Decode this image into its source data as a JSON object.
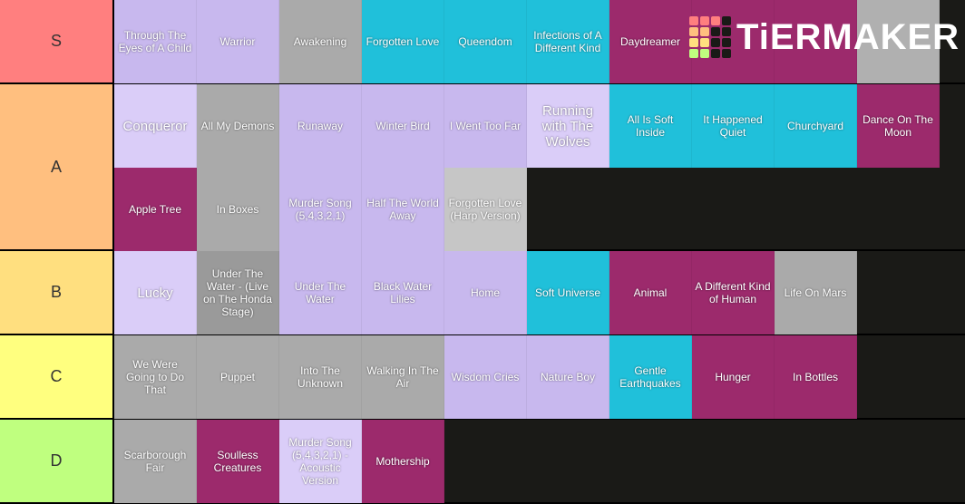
{
  "logo": "TiERMAKER",
  "tiers": [
    {
      "label": "S",
      "color": "#ff7f7f",
      "tiles": [
        {
          "label": "Through The Eyes of A Child",
          "color": "#c8b8ee"
        },
        {
          "label": "Warrior",
          "color": "#c8b8ee"
        },
        {
          "label": "Awakening",
          "color": "#aaaaaa"
        },
        {
          "label": "Forgotten Love",
          "color": "#20c0da"
        },
        {
          "label": "Queendom",
          "color": "#20c0da"
        },
        {
          "label": "Infections of A Different Kind",
          "color": "#20c0da"
        },
        {
          "label": "Daydreamer",
          "color": "#9c2a6c"
        },
        {
          "color": "#9c2a6c"
        },
        {
          "color": "#9c2a6c"
        },
        {
          "color": "#b0b0b0"
        }
      ]
    },
    {
      "label": "A",
      "color": "#ffbf7f",
      "tiles": [
        {
          "label": "Conqueror",
          "color": "#dacdf8",
          "big": true
        },
        {
          "label": "All My Demons",
          "color": "#aaaaaa"
        },
        {
          "label": "Runaway",
          "color": "#c8b8ee"
        },
        {
          "label": "Winter Bird",
          "color": "#c8b8ee"
        },
        {
          "label": "I Went Too Far",
          "color": "#c8b8ee"
        },
        {
          "label": "Running with The Wolves",
          "color": "#dacdf8",
          "big": true
        },
        {
          "label": "All Is Soft Inside",
          "color": "#20c0da"
        },
        {
          "label": "It Happened Quiet",
          "color": "#20c0da"
        },
        {
          "label": "Churchyard",
          "color": "#20c0da"
        },
        {
          "label": "Dance On The Moon",
          "color": "#9c2a6c"
        },
        {
          "label": "Apple Tree",
          "color": "#9c2a6c"
        },
        {
          "label": "In Boxes",
          "color": "#aaaaaa"
        },
        {
          "label": "Murder Song (5,4,3,2,1)",
          "color": "#c8b8ee"
        },
        {
          "label": "Half The World Away",
          "color": "#c8b8ee"
        },
        {
          "label": "Forgotten Love (Harp Version)",
          "color": "#c6c6c6"
        }
      ]
    },
    {
      "label": "B",
      "color": "#ffdf7f",
      "tiles": [
        {
          "label": "Lucky",
          "color": "#dacdf8",
          "big": true
        },
        {
          "label": "Under The Water - (Live on The Honda Stage)",
          "color": "#9a9a9a"
        },
        {
          "label": "Under The Water",
          "color": "#c8b8ee"
        },
        {
          "label": "Black Water Lilies",
          "color": "#c8b8ee"
        },
        {
          "label": "Home",
          "color": "#c8b8ee"
        },
        {
          "label": "Soft Universe",
          "color": "#20c0da"
        },
        {
          "label": "Animal",
          "color": "#9c2a6c"
        },
        {
          "label": "A Different Kind of Human",
          "color": "#9c2a6c"
        },
        {
          "label": "Life On Mars",
          "color": "#aaaaaa"
        }
      ]
    },
    {
      "label": "C",
      "color": "#ffff7f",
      "tiles": [
        {
          "label": "We Were Going to Do That",
          "color": "#aaaaaa"
        },
        {
          "label": "Puppet",
          "color": "#aaaaaa"
        },
        {
          "label": "Into The Unknown",
          "color": "#aaaaaa"
        },
        {
          "label": "Walking In The Air",
          "color": "#aaaaaa"
        },
        {
          "label": "Wisdom Cries",
          "color": "#c8b8ee"
        },
        {
          "label": "Nature Boy",
          "color": "#c8b8ee"
        },
        {
          "label": "Gentle Earthquakes",
          "color": "#20c0da"
        },
        {
          "label": "Hunger",
          "color": "#9c2a6c"
        },
        {
          "label": "In Bottles",
          "color": "#9c2a6c"
        }
      ]
    },
    {
      "label": "D",
      "color": "#bfff7f",
      "tiles": [
        {
          "label": "Scarborough Fair",
          "color": "#aaaaaa"
        },
        {
          "label": "Soulless Creatures",
          "color": "#9c2a6c"
        },
        {
          "label": "Murder Song (5,4,3,2,1) - Acoustic Version",
          "color": "#dacdf8"
        },
        {
          "label": "Mothership",
          "color": "#9c2a6c"
        }
      ]
    }
  ]
}
